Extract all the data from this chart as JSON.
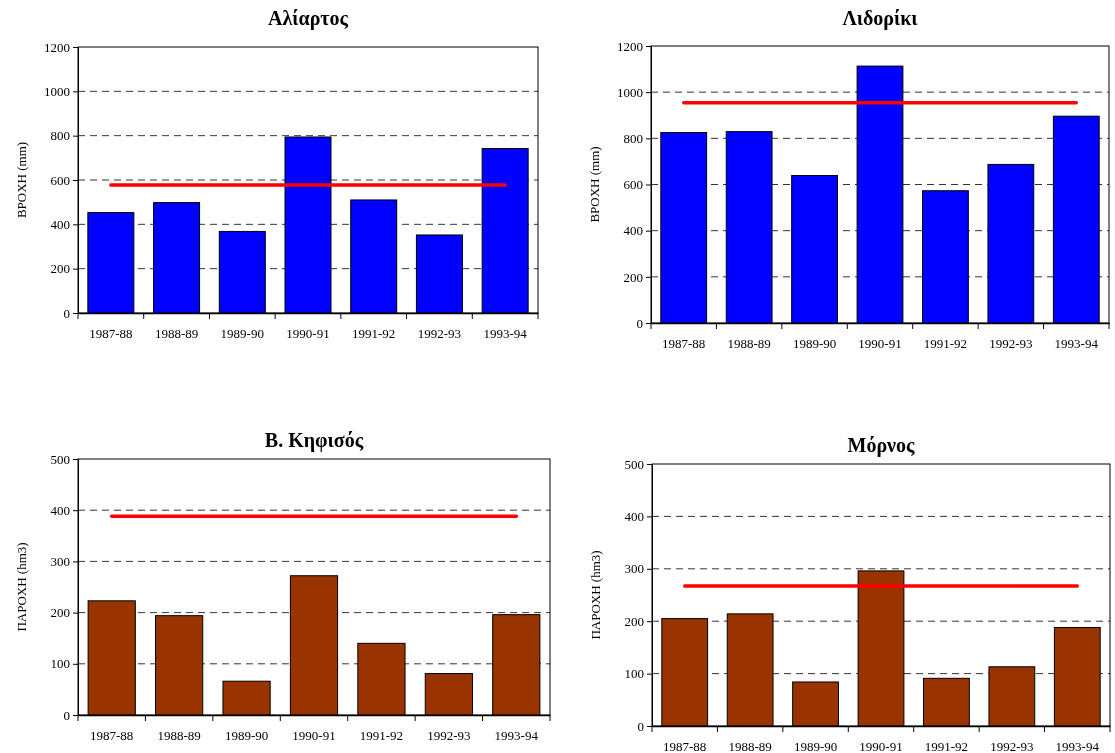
{
  "chart_data": [
    {
      "type": "bar",
      "title": "Αλίαρτος",
      "ylabel": "ΒΡΟΧΗ (mm)",
      "categories": [
        "1987-88",
        "1988-89",
        "1989-90",
        "1990-91",
        "1991-92",
        "1992-93",
        "1993-94"
      ],
      "series": [
        {
          "color": "#0000ff",
          "values": [
            453,
            498,
            368,
            794,
            510,
            352,
            742
          ]
        },
        {
          "type": "line",
          "color": "#ff0000",
          "values": [
            577,
            577,
            577,
            577,
            577,
            577,
            577
          ]
        }
      ],
      "ylim": [
        0,
        1200
      ],
      "yticks": [
        0,
        200,
        400,
        600,
        800,
        1000,
        1200
      ],
      "grid": "y"
    },
    {
      "type": "bar",
      "title": "Λιδορίκι",
      "ylabel": "ΒΡΟΧΗ (mm)",
      "categories": [
        "1987-88",
        "1988-89",
        "1989-90",
        "1990-91",
        "1991-92",
        "1992-93",
        "1993-94"
      ],
      "series": [
        {
          "color": "#0000ff",
          "values": [
            825,
            829,
            639,
            1113,
            573,
            687,
            896
          ]
        },
        {
          "type": "line",
          "color": "#ff0000",
          "values": [
            954,
            954,
            954,
            954,
            954,
            954,
            954
          ]
        }
      ],
      "ylim": [
        0,
        1200
      ],
      "yticks": [
        0,
        200,
        400,
        600,
        800,
        1000,
        1200
      ],
      "grid": "y"
    },
    {
      "type": "bar",
      "title": "Β. Κηφισός",
      "ylabel": "ΠΑΡΟΧΗ (hm3)",
      "categories": [
        "1987-88",
        "1988-89",
        "1989-90",
        "1990-91",
        "1991-92",
        "1992-93",
        "1993-94"
      ],
      "series": [
        {
          "color": "#993300",
          "values": [
            223,
            194,
            66,
            272,
            140,
            81,
            196
          ]
        },
        {
          "type": "line",
          "color": "#ff0000",
          "values": [
            388,
            388,
            388,
            388,
            388,
            388,
            388
          ]
        }
      ],
      "ylim": [
        0,
        500
      ],
      "yticks": [
        0,
        100,
        200,
        300,
        400,
        500
      ],
      "grid": "y"
    },
    {
      "type": "bar",
      "title": "Μόρνος",
      "ylabel": "ΠΑΡΟΧΗ (hm3)",
      "categories": [
        "1987-88",
        "1988-89",
        "1989-90",
        "1990-91",
        "1991-92",
        "1992-93",
        "1993-94"
      ],
      "series": [
        {
          "color": "#993300",
          "values": [
            205,
            214,
            84,
            296,
            91,
            113,
            188
          ]
        },
        {
          "type": "line",
          "color": "#ff0000",
          "values": [
            267,
            267,
            267,
            267,
            267,
            267,
            267
          ]
        }
      ],
      "ylim": [
        0,
        500
      ],
      "yticks": [
        0,
        100,
        200,
        300,
        400,
        500
      ],
      "grid": "y"
    }
  ]
}
